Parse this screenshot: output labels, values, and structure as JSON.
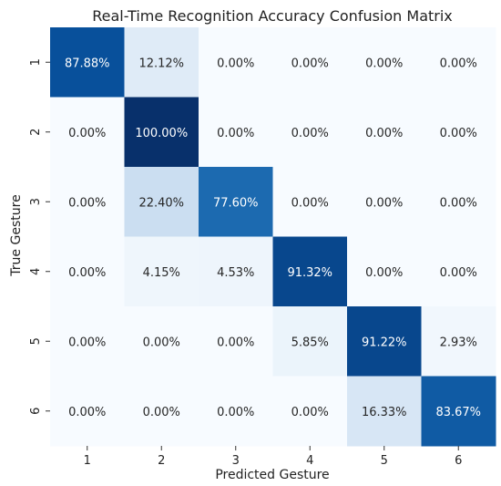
{
  "chart_data": {
    "type": "heatmap",
    "title": "Real-Time Recognition Accuracy Confusion Matrix",
    "xlabel": "Predicted Gesture",
    "ylabel": "True Gesture",
    "x_categories": [
      "1",
      "2",
      "3",
      "4",
      "5",
      "6"
    ],
    "y_categories": [
      "1",
      "2",
      "3",
      "4",
      "5",
      "6"
    ],
    "values": [
      [
        87.88,
        12.12,
        0.0,
        0.0,
        0.0,
        0.0
      ],
      [
        0.0,
        100.0,
        0.0,
        0.0,
        0.0,
        0.0
      ],
      [
        0.0,
        22.4,
        77.6,
        0.0,
        0.0,
        0.0
      ],
      [
        0.0,
        4.15,
        4.53,
        91.32,
        0.0,
        0.0
      ],
      [
        0.0,
        0.0,
        0.0,
        5.85,
        91.22,
        2.93
      ],
      [
        0.0,
        0.0,
        0.0,
        0.0,
        16.33,
        83.67
      ]
    ],
    "cell_labels": [
      [
        "87.88%",
        "12.12%",
        "0.00%",
        "0.00%",
        "0.00%",
        "0.00%"
      ],
      [
        "0.00%",
        "100.00%",
        "0.00%",
        "0.00%",
        "0.00%",
        "0.00%"
      ],
      [
        "0.00%",
        "22.40%",
        "77.60%",
        "0.00%",
        "0.00%",
        "0.00%"
      ],
      [
        "0.00%",
        "4.15%",
        "4.53%",
        "91.32%",
        "0.00%",
        "0.00%"
      ],
      [
        "0.00%",
        "0.00%",
        "0.00%",
        "5.85%",
        "91.22%",
        "2.93%"
      ],
      [
        "0.00%",
        "0.00%",
        "0.00%",
        "0.00%",
        "16.33%",
        "83.67%"
      ]
    ],
    "value_range": [
      0,
      100
    ],
    "colormap": "Blues",
    "colors": {
      "low": "#f7fbff",
      "high": "#08306b",
      "text_dark": "#262626",
      "text_light": "#ffffff"
    },
    "grid": false,
    "legend": "none"
  }
}
